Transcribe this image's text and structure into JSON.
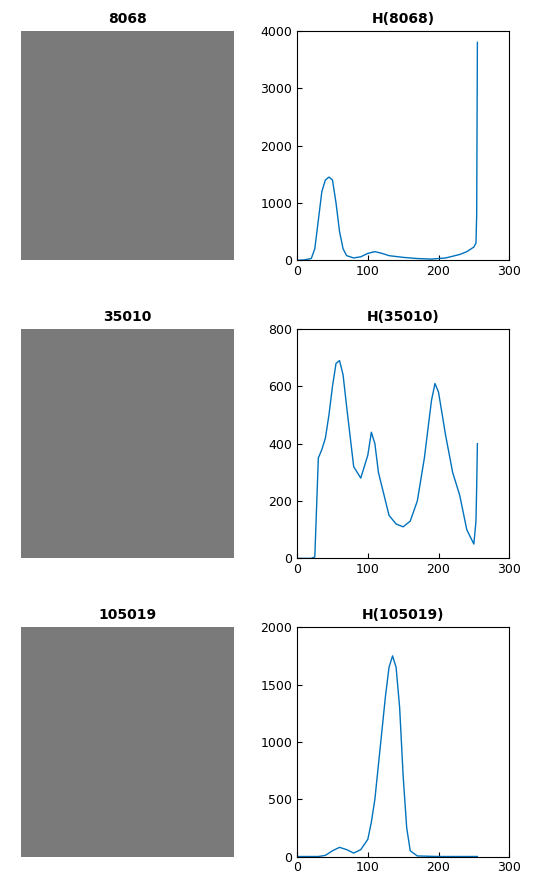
{
  "chart_data": [
    {
      "type": "image",
      "title": "8068"
    },
    {
      "type": "line",
      "title": "H(8068)",
      "color": "#0072bd",
      "x": [
        0,
        10,
        20,
        25,
        30,
        35,
        40,
        45,
        50,
        55,
        60,
        65,
        70,
        80,
        90,
        100,
        110,
        120,
        130,
        150,
        170,
        190,
        210,
        230,
        240,
        250,
        253,
        254,
        255
      ],
      "values": [
        0,
        5,
        30,
        200,
        700,
        1200,
        1400,
        1450,
        1400,
        1000,
        500,
        200,
        80,
        40,
        60,
        120,
        150,
        120,
        80,
        50,
        30,
        20,
        40,
        100,
        150,
        230,
        300,
        800,
        3800
      ],
      "xlim": [
        0,
        300
      ],
      "xticks": [
        0,
        100,
        200,
        300
      ],
      "ylim": [
        0,
        4000
      ],
      "yticks": [
        0,
        1000,
        2000,
        3000,
        4000
      ]
    },
    {
      "type": "image",
      "title": "35010"
    },
    {
      "type": "line",
      "title": "H(35010)",
      "color": "#0072bd",
      "x": [
        0,
        20,
        25,
        30,
        35,
        40,
        45,
        50,
        55,
        60,
        65,
        70,
        80,
        90,
        100,
        105,
        110,
        115,
        125,
        130,
        140,
        150,
        160,
        170,
        180,
        190,
        195,
        200,
        210,
        220,
        230,
        240,
        250,
        253,
        254,
        255
      ],
      "values": [
        0,
        0,
        5,
        350,
        380,
        420,
        500,
        600,
        680,
        690,
        640,
        530,
        320,
        280,
        360,
        440,
        400,
        300,
        200,
        150,
        120,
        110,
        130,
        200,
        350,
        550,
        610,
        580,
        430,
        300,
        220,
        100,
        50,
        130,
        250,
        400
      ],
      "xlim": [
        0,
        300
      ],
      "xticks": [
        0,
        100,
        200,
        300
      ],
      "ylim": [
        0,
        800
      ],
      "yticks": [
        0,
        200,
        400,
        600,
        800
      ]
    },
    {
      "type": "image",
      "title": "105019"
    },
    {
      "type": "line",
      "title": "H(105019)",
      "color": "#0072bd",
      "x": [
        0,
        30,
        40,
        50,
        60,
        70,
        80,
        90,
        100,
        105,
        110,
        115,
        120,
        125,
        130,
        135,
        140,
        145,
        150,
        155,
        160,
        170,
        200,
        255
      ],
      "values": [
        0,
        0,
        10,
        50,
        80,
        60,
        30,
        60,
        150,
        300,
        500,
        800,
        1100,
        1400,
        1650,
        1750,
        1650,
        1300,
        700,
        250,
        50,
        5,
        0,
        0
      ],
      "xlim": [
        0,
        300
      ],
      "xticks": [
        0,
        100,
        200,
        300
      ],
      "ylim": [
        0,
        2000
      ],
      "yticks": [
        0,
        500,
        1000,
        1500,
        2000
      ]
    }
  ]
}
